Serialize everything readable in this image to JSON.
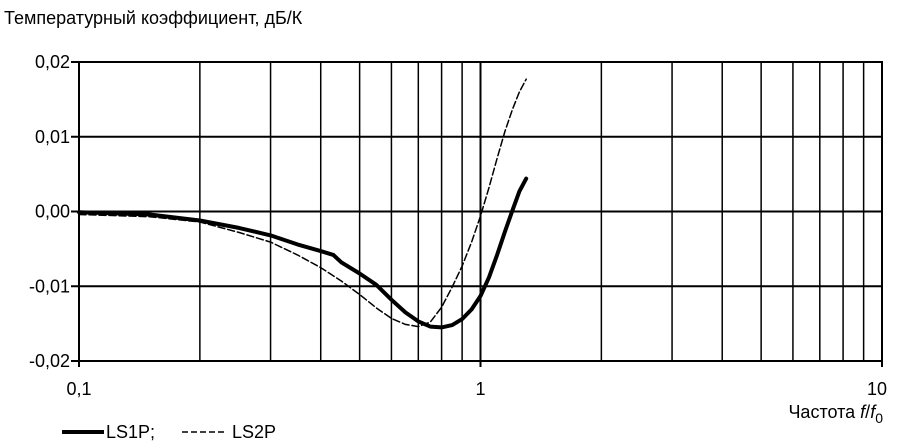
{
  "chart_data": {
    "type": "line",
    "title": "",
    "ylabel": "Температурный коэффициент, дБ/К",
    "xlabel_prefix": "Частота ",
    "xlabel_f": "f",
    "xlabel_slash": "/",
    "xlabel_f0": "f",
    "xlabel_sub": "0",
    "x_scale": "log",
    "xlim": [
      0.1,
      10
    ],
    "ylim": [
      -0.02,
      0.02
    ],
    "x_ticks": [
      {
        "value": 0.1,
        "label": "0,1"
      },
      {
        "value": 1,
        "label": "1"
      },
      {
        "value": 10,
        "label": "10"
      }
    ],
    "y_ticks": [
      {
        "value": 0.02,
        "label": "0,02"
      },
      {
        "value": 0.01,
        "label": "0,01"
      },
      {
        "value": 0.0,
        "label": "0,00"
      },
      {
        "value": -0.01,
        "label": "-0,01"
      },
      {
        "value": -0.02,
        "label": "-0,02"
      }
    ],
    "grid": true,
    "legend_position": "bottom-left",
    "legend_sep": ";",
    "series": [
      {
        "name": "LS1P",
        "style": "solid-thick",
        "color": "#000000",
        "x": [
          0.1,
          0.15,
          0.2,
          0.25,
          0.3,
          0.35,
          0.4,
          0.43,
          0.45,
          0.5,
          0.55,
          0.6,
          0.65,
          0.7,
          0.75,
          0.8,
          0.85,
          0.9,
          0.95,
          1.0,
          1.05,
          1.1,
          1.15,
          1.2,
          1.25,
          1.3
        ],
        "y": [
          -0.0001,
          -0.0004,
          -0.0012,
          -0.0022,
          -0.0032,
          -0.0044,
          -0.0053,
          -0.0058,
          -0.0068,
          -0.0083,
          -0.0098,
          -0.0118,
          -0.0135,
          -0.0147,
          -0.0154,
          -0.0155,
          -0.0152,
          -0.0144,
          -0.0131,
          -0.0113,
          -0.0088,
          -0.0058,
          -0.0027,
          0.0001,
          0.0027,
          0.0044
        ]
      },
      {
        "name": "LS2P",
        "style": "dashed-thin",
        "color": "#000000",
        "x": [
          0.1,
          0.15,
          0.2,
          0.25,
          0.3,
          0.35,
          0.4,
          0.45,
          0.5,
          0.55,
          0.6,
          0.65,
          0.7,
          0.75,
          0.8,
          0.85,
          0.9,
          0.95,
          1.0,
          1.05,
          1.1,
          1.15,
          1.2,
          1.25,
          1.3
        ],
        "y": [
          -0.0004,
          -0.0007,
          -0.0014,
          -0.0028,
          -0.0041,
          -0.0058,
          -0.0075,
          -0.0093,
          -0.0111,
          -0.0129,
          -0.0143,
          -0.0151,
          -0.0154,
          -0.0148,
          -0.0128,
          -0.0101,
          -0.0073,
          -0.0041,
          -0.0006,
          0.0032,
          0.0071,
          0.0107,
          0.0136,
          0.016,
          0.0177
        ]
      }
    ]
  }
}
